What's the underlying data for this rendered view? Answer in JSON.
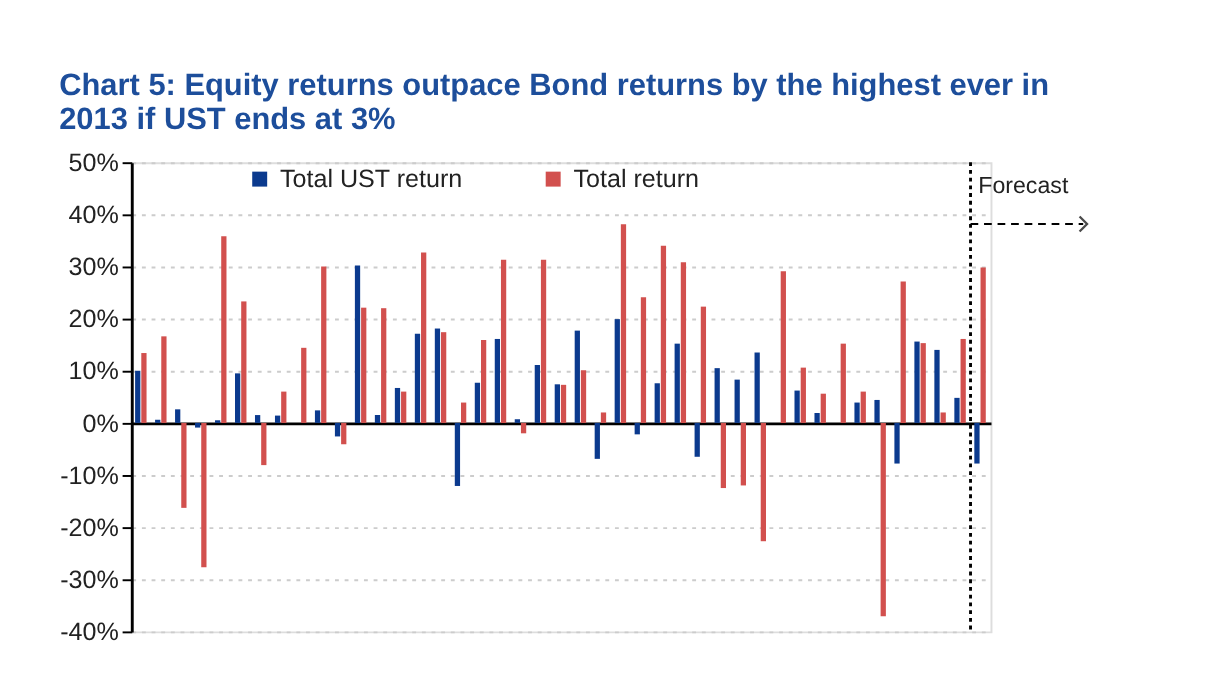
{
  "chart_data": {
    "type": "bar",
    "title": "Chart 5: Equity returns outpace Bond returns by the highest ever in 2013 if UST ends at 3%",
    "categories": [
      null,
      null,
      null,
      null,
      null,
      null,
      null,
      null,
      null,
      null,
      null,
      null,
      null,
      null,
      null,
      null,
      null,
      null,
      null,
      null,
      null,
      null,
      null,
      null,
      null,
      null,
      null,
      null,
      null,
      null,
      null,
      null,
      null,
      null,
      null,
      null,
      null,
      null,
      null,
      null,
      null,
      null,
      null
    ],
    "series": [
      {
        "name": "Total UST return",
        "color": "#0b3a8e",
        "values": [
          10.0,
          0.6,
          2.6,
          -0.9,
          0.5,
          9.5,
          1.5,
          1.4,
          0,
          2.4,
          -2.6,
          30.2,
          1.5,
          6.7,
          17.1,
          18.1,
          -12.1,
          7.7,
          16.1,
          0.7,
          11.1,
          7.4,
          17.7,
          -6.9,
          19.9,
          -2.2,
          7.6,
          15.2,
          -6.5,
          10.5,
          8.3,
          13.5,
          0,
          6.2,
          1.9,
          0,
          3.9,
          4.4,
          -7.8,
          15.6,
          14.0,
          4.8,
          -7.8
        ]
      },
      {
        "name": "Total return",
        "color": "#d2504e",
        "values": [
          13.4,
          16.6,
          -16.3,
          -27.7,
          35.8,
          23.3,
          -8.1,
          6.0,
          14.4,
          30.0,
          -4.1,
          22.1,
          22.0,
          6.0,
          32.7,
          17.4,
          3.9,
          15.9,
          31.3,
          -2.0,
          31.3,
          7.3,
          10.1,
          2.0,
          38.1,
          24.1,
          34.0,
          30.8,
          22.3,
          -12.5,
          -12.0,
          -22.7,
          29.1,
          10.6,
          5.6,
          15.2,
          6.0,
          -37.1,
          27.1,
          15.3,
          2.0,
          16.1,
          29.8
        ]
      }
    ],
    "ylim": [
      -40,
      50
    ],
    "yticks": [
      {
        "value": -40,
        "label": "-40%"
      },
      {
        "value": -30,
        "label": "-30%"
      },
      {
        "value": -20,
        "label": "-20%"
      },
      {
        "value": -10,
        "label": "-10%"
      },
      {
        "value": 0,
        "label": "0%"
      },
      {
        "value": 10,
        "label": "10%"
      },
      {
        "value": 20,
        "label": "20%"
      },
      {
        "value": 30,
        "label": "30%"
      },
      {
        "value": 40,
        "label": "40%"
      },
      {
        "value": 50,
        "label": "50%"
      }
    ],
    "annotations": [
      "Forecast"
    ],
    "grid": "y",
    "legend": "top",
    "tick_labels": "y"
  }
}
